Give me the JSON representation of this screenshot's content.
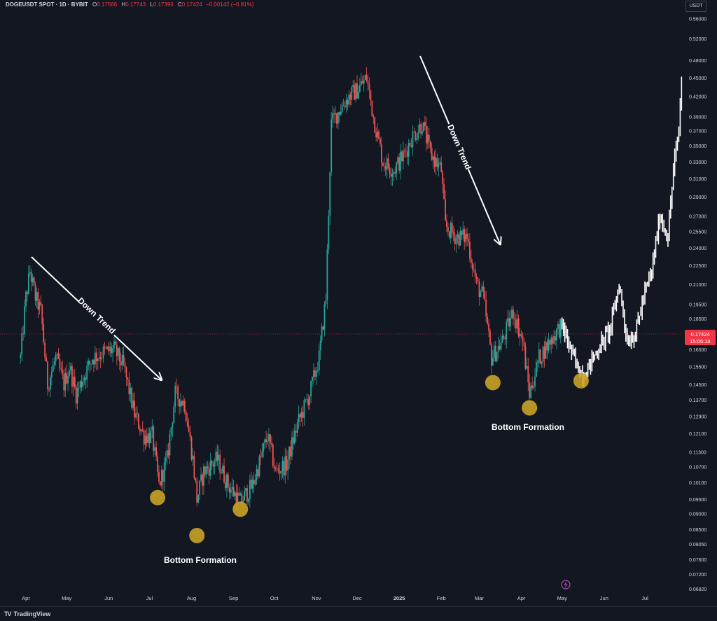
{
  "header": {
    "symbol": "DOGEUSDT SPOT · 1D · BYBIT",
    "o_label": "O",
    "o_value": "0.17566",
    "h_label": "H",
    "h_value": "0.17743",
    "l_label": "L",
    "l_value": "0.17396",
    "c_label": "C",
    "c_value": "0.17424",
    "change": "−0.00142 (−0.81%)"
  },
  "currency_button": "USDT",
  "brand": {
    "logo_icon": "tradingview-logo-icon",
    "name": "TradingView"
  },
  "lightning_icon": "lightning-icon",
  "colors": {
    "background": "#131722",
    "up": "#26a69a",
    "down": "#ef5350",
    "projection": "#ffffff",
    "marker": "#c9a227",
    "price_label": "#f23645"
  },
  "chart_data": {
    "type": "candlestick",
    "y_scale": "log",
    "y_ticks": [
      "0.56000",
      "0.52000",
      "0.48000",
      "0.45000",
      "0.42000",
      "0.39000",
      "0.37000",
      "0.35000",
      "0.33000",
      "0.31000",
      "0.29000",
      "0.27000",
      "0.25500",
      "0.24000",
      "0.22500",
      "0.21000",
      "0.19500",
      "0.18500",
      "0.16500",
      "0.15500",
      "0.14500",
      "0.13700",
      "0.12900",
      "0.12100",
      "0.11300",
      "0.10700",
      "0.10100",
      "0.09500",
      "0.09000",
      "0.08500",
      "0.08050",
      "0.07600",
      "0.07200",
      "0.06820"
    ],
    "x_ticks": [
      "Apr",
      "May",
      "Jun",
      "Jul",
      "Aug",
      "Sep",
      "Oct",
      "Nov",
      "Dec",
      "2025",
      "Feb",
      "Mar",
      "Apr",
      "May",
      "Jun",
      "Jul"
    ],
    "current_price": {
      "value": "0.17424",
      "countdown": "15:06:18"
    },
    "price_path": [
      [
        "2024-03-28",
        0.16
      ],
      [
        "2024-04-01",
        0.2
      ],
      [
        "2024-04-04",
        0.22
      ],
      [
        "2024-04-08",
        0.2
      ],
      [
        "2024-04-12",
        0.19
      ],
      [
        "2024-04-17",
        0.145
      ],
      [
        "2024-04-23",
        0.16
      ],
      [
        "2024-04-29",
        0.145
      ],
      [
        "2024-05-03",
        0.155
      ],
      [
        "2024-05-08",
        0.14
      ],
      [
        "2024-05-14",
        0.15
      ],
      [
        "2024-05-20",
        0.16
      ],
      [
        "2024-05-28",
        0.163
      ],
      [
        "2024-06-05",
        0.165
      ],
      [
        "2024-06-12",
        0.155
      ],
      [
        "2024-06-20",
        0.13
      ],
      [
        "2024-06-27",
        0.12
      ],
      [
        "2024-07-03",
        0.12
      ],
      [
        "2024-07-08",
        0.1
      ],
      [
        "2024-07-14",
        0.11
      ],
      [
        "2024-07-20",
        0.14
      ],
      [
        "2024-07-27",
        0.135
      ],
      [
        "2024-08-02",
        0.11
      ],
      [
        "2024-08-05",
        0.095
      ],
      [
        "2024-08-10",
        0.105
      ],
      [
        "2024-08-20",
        0.11
      ],
      [
        "2024-08-28",
        0.1
      ],
      [
        "2024-09-06",
        0.094
      ],
      [
        "2024-09-15",
        0.1
      ],
      [
        "2024-09-26",
        0.12
      ],
      [
        "2024-10-02",
        0.105
      ],
      [
        "2024-10-10",
        0.108
      ],
      [
        "2024-10-18",
        0.125
      ],
      [
        "2024-10-27",
        0.14
      ],
      [
        "2024-11-03",
        0.16
      ],
      [
        "2024-11-08",
        0.2
      ],
      [
        "2024-11-12",
        0.38
      ],
      [
        "2024-11-18",
        0.4
      ],
      [
        "2024-11-25",
        0.42
      ],
      [
        "2024-12-01",
        0.43
      ],
      [
        "2024-12-08",
        0.45
      ],
      [
        "2024-12-13",
        0.39
      ],
      [
        "2024-12-20",
        0.33
      ],
      [
        "2024-12-28",
        0.32
      ],
      [
        "2025-01-05",
        0.34
      ],
      [
        "2025-01-10",
        0.36
      ],
      [
        "2025-01-18",
        0.38
      ],
      [
        "2025-01-24",
        0.34
      ],
      [
        "2025-02-01",
        0.32
      ],
      [
        "2025-02-04",
        0.26
      ],
      [
        "2025-02-12",
        0.25
      ],
      [
        "2025-02-20",
        0.25
      ],
      [
        "2025-02-27",
        0.21
      ],
      [
        "2025-03-04",
        0.2
      ],
      [
        "2025-03-10",
        0.16
      ],
      [
        "2025-03-18",
        0.17
      ],
      [
        "2025-03-26",
        0.19
      ],
      [
        "2025-04-02",
        0.17
      ],
      [
        "2025-04-07",
        0.14
      ],
      [
        "2025-04-14",
        0.16
      ],
      [
        "2025-04-22",
        0.17
      ],
      [
        "2025-04-30",
        0.18
      ]
    ],
    "projection_path": [
      [
        "2025-05-01",
        0.18
      ],
      [
        "2025-05-05",
        0.17
      ],
      [
        "2025-05-12",
        0.155
      ],
      [
        "2025-05-17",
        0.15
      ],
      [
        "2025-05-24",
        0.16
      ],
      [
        "2025-05-31",
        0.17
      ],
      [
        "2025-06-06",
        0.18
      ],
      [
        "2025-06-12",
        0.21
      ],
      [
        "2025-06-18",
        0.17
      ],
      [
        "2025-06-24",
        0.175
      ],
      [
        "2025-06-30",
        0.2
      ],
      [
        "2025-07-06",
        0.22
      ],
      [
        "2025-07-12",
        0.27
      ],
      [
        "2025-07-18",
        0.25
      ],
      [
        "2025-07-22",
        0.32
      ],
      [
        "2025-07-26",
        0.37
      ],
      [
        "2025-07-28",
        0.45
      ]
    ],
    "annotations": {
      "down_trend_1": "Down Trend",
      "down_trend_2": "Down Trend",
      "bottom_formation_1": "Bottom Formation",
      "bottom_formation_2": "Bottom Formation"
    },
    "bottom_markers": [
      [
        "2024-07-07",
        0.0955
      ],
      [
        "2024-08-05",
        0.083
      ],
      [
        "2024-09-06",
        0.0915
      ],
      [
        "2025-03-11",
        0.146
      ],
      [
        "2025-04-07",
        0.133
      ],
      [
        "2025-05-15",
        0.147
      ]
    ]
  }
}
